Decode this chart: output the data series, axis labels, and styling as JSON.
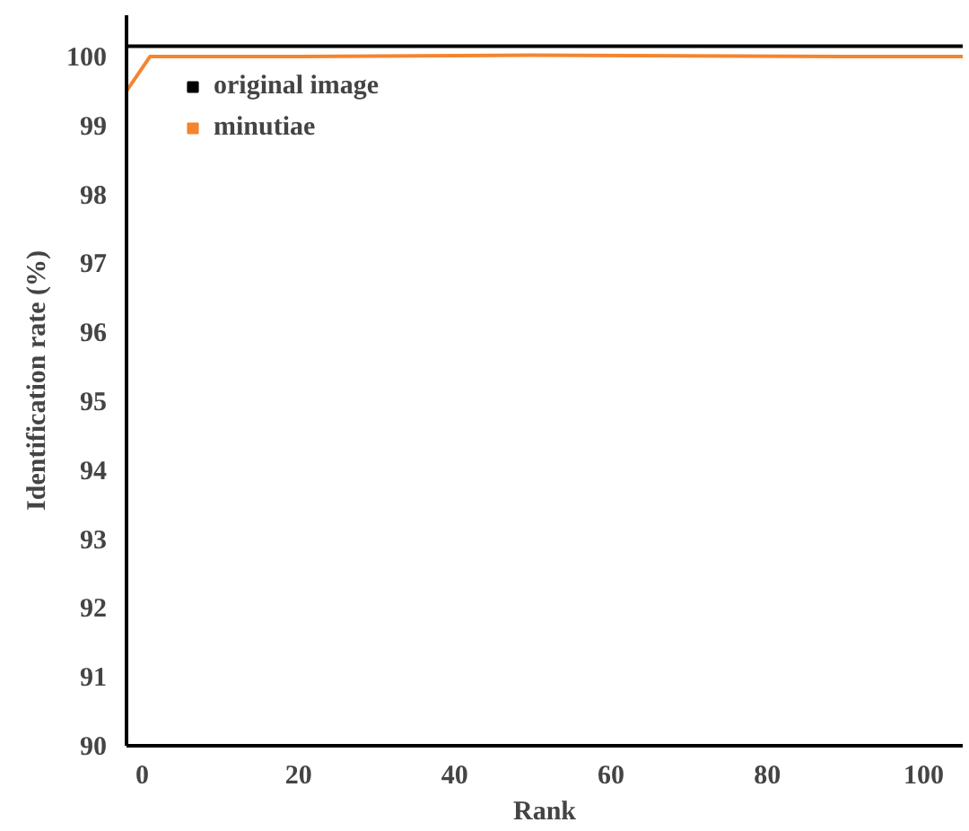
{
  "chart_data": {
    "type": "line",
    "xlabel": "Rank",
    "ylabel": "Identification rate (%)",
    "xlim": [
      -2,
      105
    ],
    "ylim": [
      90,
      100.6
    ],
    "xticks": [
      0,
      20,
      40,
      60,
      80,
      100
    ],
    "yticks": [
      90,
      91,
      92,
      93,
      94,
      95,
      96,
      97,
      98,
      99,
      100
    ],
    "grid": false,
    "legend": "top left",
    "marker": "none",
    "line_style": "solid",
    "series": [
      {
        "name": "original image",
        "color": "#000000",
        "x": [
          -2,
          105
        ],
        "values": [
          100.15,
          100.15
        ]
      },
      {
        "name": "minutiae",
        "color": "#f4852f",
        "x": [
          -2,
          1,
          20,
          50,
          90,
          105
        ],
        "values": [
          99.5,
          100.0,
          100.0,
          100.02,
          100.0,
          100.0
        ]
      }
    ]
  }
}
